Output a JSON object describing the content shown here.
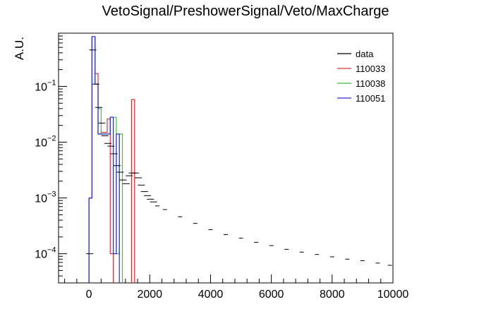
{
  "chart_data": {
    "type": "line",
    "style": "step-histogram",
    "title": "VetoSignal/PreshowerSignal/Veto/MaxCharge",
    "xlabel": "",
    "ylabel": "A.U.",
    "xlim": [
      -1000,
      10000
    ],
    "ylim": [
      3e-05,
      0.9
    ],
    "yscale": "log",
    "grid": false,
    "legend": "top-right",
    "x_ticks": [
      0,
      2000,
      4000,
      6000,
      8000,
      10000
    ],
    "y_ticks": [
      {
        "value": 0.0001,
        "label": "10",
        "exp": "−4"
      },
      {
        "value": 0.001,
        "label": "10",
        "exp": "−3"
      },
      {
        "value": 0.01,
        "label": "10",
        "exp": "−2"
      },
      {
        "value": 0.1,
        "label": "10",
        "exp": "−1"
      }
    ],
    "series": [
      {
        "name": "data",
        "color": "#000000",
        "draw": "errorbars",
        "x": [
          25,
          125,
          225,
          325,
          425,
          525,
          625,
          725,
          825,
          925,
          1025,
          1125,
          1225,
          1325,
          1425,
          1525,
          1625,
          1725,
          1825,
          1925,
          2025,
          2125,
          2250,
          2500,
          3000,
          3500,
          4000,
          4500,
          5000,
          5500,
          6000,
          6500,
          7000,
          7500,
          8000,
          8500,
          9000,
          9500,
          9900
        ],
        "values": [
          0.0001,
          0.45,
          0.11,
          0.042,
          0.022,
          0.013,
          0.0095,
          0.0085,
          0.0062,
          0.0038,
          0.0029,
          0.0021,
          0.0018,
          0.0025,
          0.0028,
          0.0028,
          0.0023,
          0.0017,
          0.0013,
          0.0011,
          0.00095,
          0.00085,
          0.00072,
          0.00062,
          0.00046,
          0.00035,
          0.00027,
          0.00022,
          0.00019,
          0.00016,
          0.00014,
          0.00012,
          0.000107,
          9.7e-05,
          8.8e-05,
          8e-05,
          7.5e-05,
          6.8e-05,
          6.2e-05
        ]
      },
      {
        "name": "110033",
        "color": "#d93434",
        "draw": "steps",
        "bins": [
          [
            0,
            100,
            0.001
          ],
          [
            100,
            200,
            0.78
          ],
          [
            200,
            300,
            0.17
          ],
          [
            300,
            400,
            0.014
          ],
          [
            400,
            500,
            0.015
          ],
          [
            500,
            600,
            0.015
          ],
          [
            600,
            700,
            0.026
          ],
          [
            700,
            800,
            0.0001
          ],
          [
            1400,
            1500,
            0.058
          ]
        ]
      },
      {
        "name": "110038",
        "color": "#3cc23c",
        "draw": "steps",
        "bins": [
          [
            0,
            100,
            0.001
          ],
          [
            100,
            200,
            0.78
          ],
          [
            200,
            300,
            0.11
          ],
          [
            300,
            400,
            0.04
          ],
          [
            400,
            500,
            0.014
          ],
          [
            500,
            600,
            0.014
          ],
          [
            600,
            700,
            0.014
          ],
          [
            700,
            800,
            0.028
          ],
          [
            800,
            900,
            0.028
          ],
          [
            900,
            1000,
            0.0001
          ],
          [
            1000,
            1100,
            0.014
          ]
        ]
      },
      {
        "name": "110051",
        "color": "#2b2bd9",
        "draw": "steps",
        "bins": [
          [
            0,
            100,
            0.001
          ],
          [
            100,
            200,
            0.78
          ],
          [
            200,
            300,
            0.11
          ],
          [
            300,
            400,
            0.014
          ],
          [
            400,
            500,
            0.014
          ],
          [
            500,
            600,
            0.014
          ],
          [
            600,
            700,
            0.014
          ],
          [
            700,
            800,
            0.028
          ],
          [
            800,
            900,
            0.0001
          ],
          [
            900,
            1000,
            0.014
          ]
        ]
      }
    ]
  }
}
